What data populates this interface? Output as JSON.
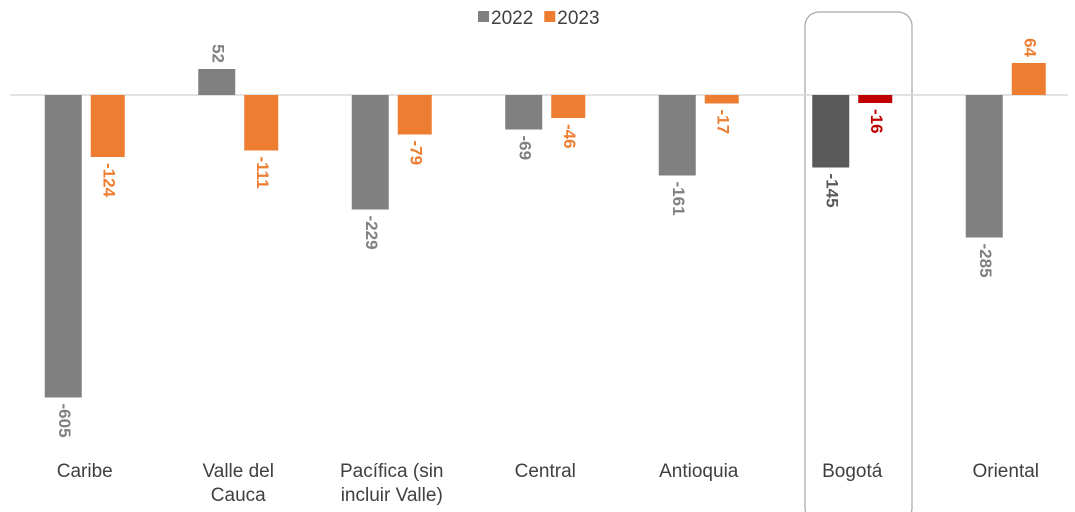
{
  "chart_data": {
    "type": "bar",
    "categories": [
      "Caribe",
      "Valle del Cauca",
      "Pacífica (sin incluir Valle)",
      "Central",
      "Antioquia",
      "Bogotá",
      "Oriental"
    ],
    "series": [
      {
        "name": "2022",
        "color": "#808080",
        "colors": [
          "#808080",
          "#808080",
          "#808080",
          "#808080",
          "#808080",
          "#595959",
          "#808080"
        ],
        "values": [
          -605,
          52,
          -229,
          -69,
          -161,
          -145,
          -285
        ]
      },
      {
        "name": "2023",
        "color": "#ed7d31",
        "colors": [
          "#ed7d31",
          "#ed7d31",
          "#ed7d31",
          "#ed7d31",
          "#ed7d31",
          "#c00000",
          "#ed7d31"
        ],
        "values": [
          -124,
          -111,
          -79,
          -46,
          -17,
          -16,
          64
        ]
      }
    ],
    "legend": "top"
  }
}
